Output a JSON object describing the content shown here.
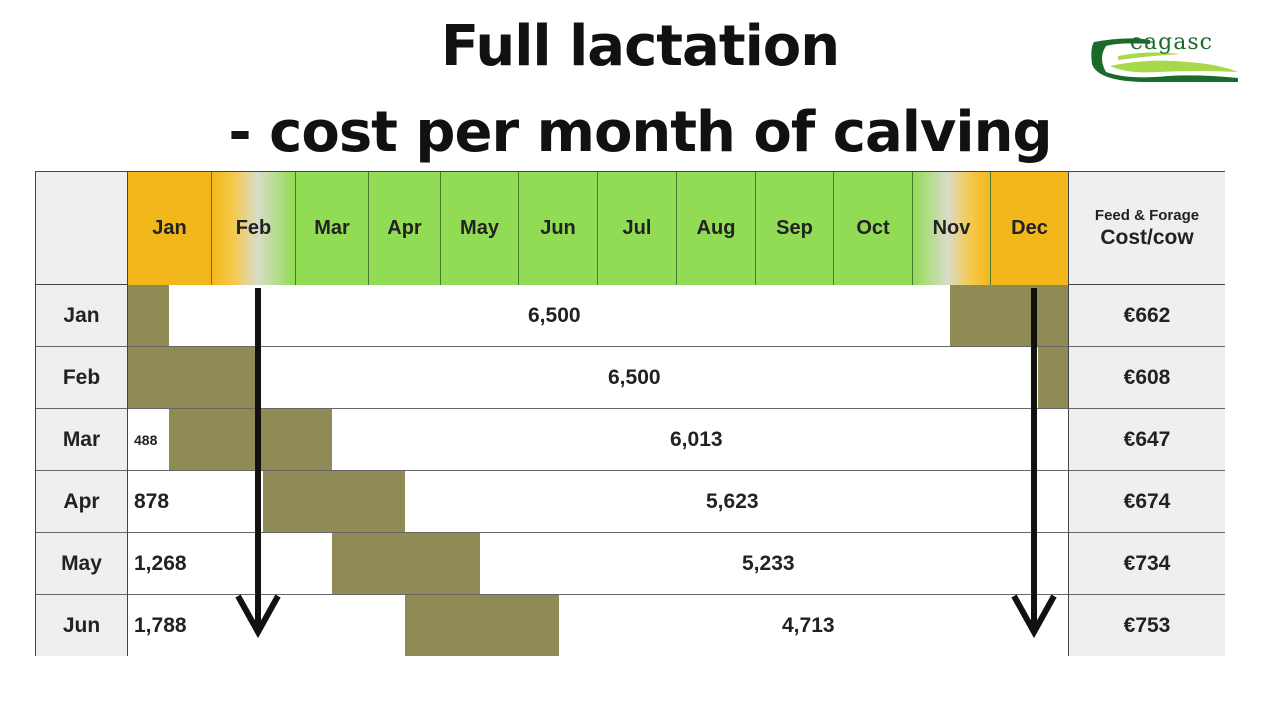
{
  "title": {
    "line1": "Full lactation",
    "line2": "- cost per month of calving"
  },
  "logo": {
    "text": "eagasc",
    "colors": {
      "dark": "#1a6b2a",
      "light": "#a8d94a"
    }
  },
  "header": {
    "months": [
      "Jan",
      "Feb",
      "Mar",
      "Apr",
      "May",
      "Jun",
      "Jul",
      "Aug",
      "Sep",
      "Oct",
      "Nov",
      "Dec"
    ],
    "cost_sub": "Feed & Forage",
    "cost_main": "Cost/cow"
  },
  "rows": [
    {
      "label": "Jan",
      "left_value": "",
      "main_value": "6,500",
      "cost": "€662"
    },
    {
      "label": "Feb",
      "left_value": "",
      "main_value": "6,500",
      "cost": "€608"
    },
    {
      "label": "Mar",
      "left_value": "488",
      "main_value": "6,013",
      "cost": "€647"
    },
    {
      "label": "Apr",
      "left_value": "878",
      "main_value": "5,623",
      "cost": "€674"
    },
    {
      "label": "May",
      "left_value": "1,268",
      "main_value": "5,233",
      "cost": "€734"
    },
    {
      "label": "Jun",
      "left_value": "1,788",
      "main_value": "4,713",
      "cost": "€753"
    }
  ],
  "colors": {
    "yellow": "#f2b81b",
    "green": "#92dc55",
    "dry_period": "#8f8a56",
    "label_bg": "#efefef"
  }
}
